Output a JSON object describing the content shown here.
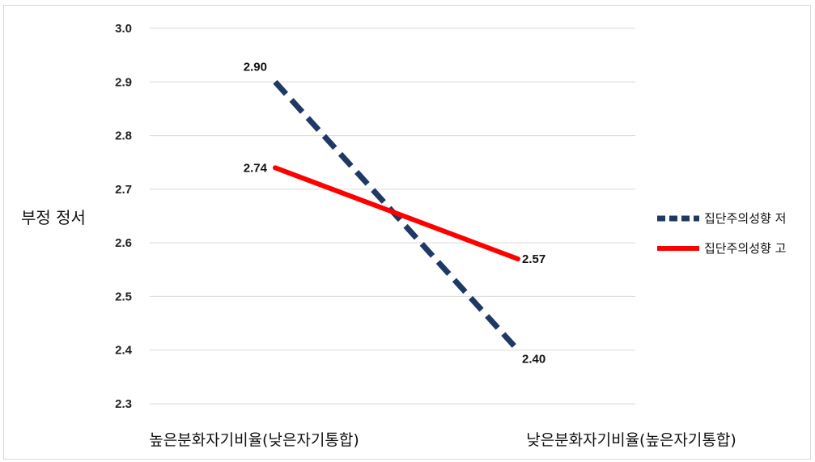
{
  "chart_data": {
    "type": "line",
    "title": "",
    "xlabel": "",
    "ylabel": "부정 정서",
    "ylim": [
      2.3,
      3.0
    ],
    "yticks": [
      "3.0",
      "2.9",
      "2.8",
      "2.7",
      "2.6",
      "2.5",
      "2.4",
      "2.3"
    ],
    "categories": [
      "높은분화자기비율(낮은자기통합)",
      "낮은분화자기비율(높은자기통합)"
    ],
    "series": [
      {
        "name": "집단주의성향 저",
        "values": [
          2.9,
          2.4
        ],
        "labels": [
          "2.90",
          "2.40"
        ],
        "color": "#1f3864",
        "style": "dashed"
      },
      {
        "name": "집단주의성향 고",
        "values": [
          2.74,
          2.57
        ],
        "labels": [
          "2.74",
          "2.57"
        ],
        "color": "#ff0000",
        "style": "solid"
      }
    ],
    "grid": true,
    "legend_position": "right"
  }
}
